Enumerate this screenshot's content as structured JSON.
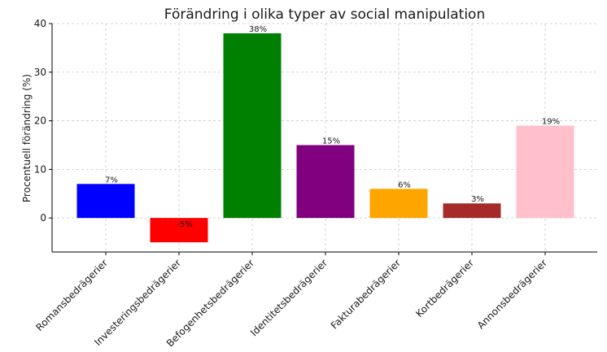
{
  "chart_data": {
    "type": "bar",
    "title": "Förändring i olika typer av social manipulation",
    "xlabel": "",
    "ylabel": "Procentuell förändring (%)",
    "categories": [
      "Romansbedrägerier",
      "Investeringsbedrägerier",
      "Befogenhetsbedrägerier",
      "Identitetsbedrägerier",
      "Fakturabedrägerier",
      "Kortbedrägerier",
      "Annonsbedrägerier"
    ],
    "values": [
      7,
      -5,
      38,
      15,
      6,
      3,
      19
    ],
    "value_labels": [
      "7%",
      "-5%",
      "38%",
      "15%",
      "6%",
      "3%",
      "19%"
    ],
    "colors": [
      "#0000ff",
      "#ff0000",
      "#008000",
      "#800080",
      "#ffa500",
      "#a52a2a",
      "#ffc0cb"
    ],
    "ylim": [
      -7,
      40
    ],
    "yticks": [
      0,
      10,
      20,
      30,
      40
    ],
    "grid": true
  }
}
